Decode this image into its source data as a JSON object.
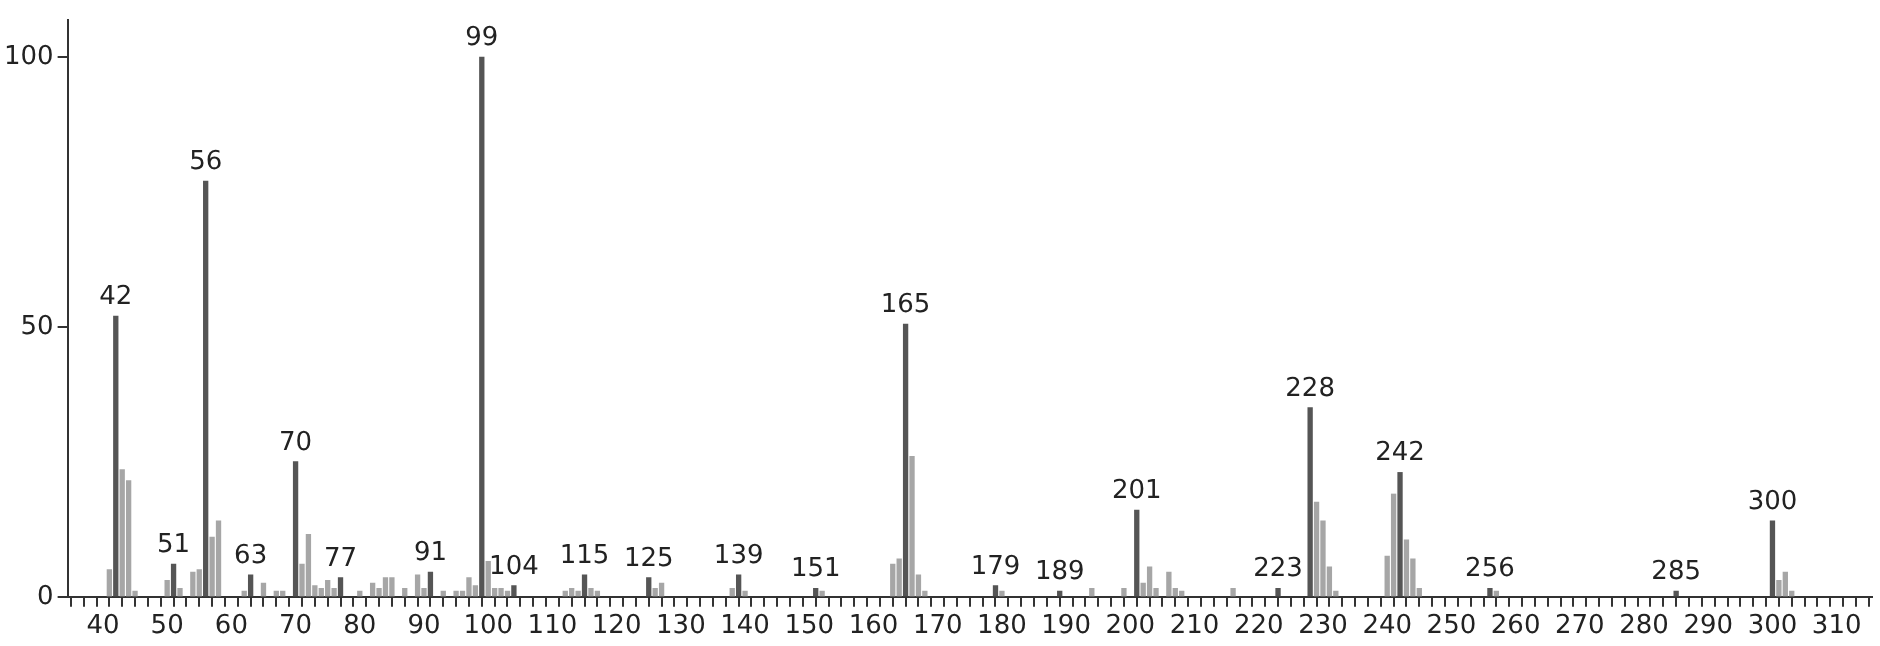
{
  "chart_data": {
    "type": "bar",
    "xlim": [
      34.5,
      315.5
    ],
    "ylim": [
      0,
      107
    ],
    "yticks": [
      0,
      50,
      100
    ],
    "xticks": [
      {
        "value": 36,
        "label": null
      },
      {
        "value": 38,
        "label": null
      },
      40,
      {
        "value": 42,
        "label": null
      },
      {
        "value": 44,
        "label": null
      },
      {
        "value": 46,
        "label": null
      },
      {
        "value": 48,
        "label": null
      },
      50,
      {
        "value": 52,
        "label": null
      },
      {
        "value": 54,
        "label": null
      },
      {
        "value": 56,
        "label": null
      },
      {
        "value": 58,
        "label": null
      },
      60,
      {
        "value": 62,
        "label": null
      },
      {
        "value": 64,
        "label": null
      },
      {
        "value": 66,
        "label": null
      },
      {
        "value": 68,
        "label": null
      },
      70,
      {
        "value": 72,
        "label": null
      },
      {
        "value": 74,
        "label": null
      },
      {
        "value": 76,
        "label": null
      },
      {
        "value": 78,
        "label": null
      },
      80,
      {
        "value": 82,
        "label": null
      },
      {
        "value": 84,
        "label": null
      },
      {
        "value": 86,
        "label": null
      },
      {
        "value": 88,
        "label": null
      },
      90,
      {
        "value": 92,
        "label": null
      },
      {
        "value": 94,
        "label": null
      },
      {
        "value": 96,
        "label": null
      },
      {
        "value": 98,
        "label": null
      },
      100,
      {
        "value": 102,
        "label": null
      },
      {
        "value": 104,
        "label": null
      },
      {
        "value": 106,
        "label": null
      },
      {
        "value": 108,
        "label": null
      },
      110,
      {
        "value": 112,
        "label": null
      },
      {
        "value": 114,
        "label": null
      },
      {
        "value": 116,
        "label": null
      },
      {
        "value": 118,
        "label": null
      },
      120,
      {
        "value": 122,
        "label": null
      },
      {
        "value": 124,
        "label": null
      },
      {
        "value": 126,
        "label": null
      },
      {
        "value": 128,
        "label": null
      },
      130,
      {
        "value": 132,
        "label": null
      },
      {
        "value": 134,
        "label": null
      },
      {
        "value": 136,
        "label": null
      },
      {
        "value": 138,
        "label": null
      },
      140,
      {
        "value": 142,
        "label": null
      },
      {
        "value": 144,
        "label": null
      },
      {
        "value": 146,
        "label": null
      },
      {
        "value": 148,
        "label": null
      },
      150,
      {
        "value": 152,
        "label": null
      },
      {
        "value": 154,
        "label": null
      },
      {
        "value": 156,
        "label": null
      },
      {
        "value": 158,
        "label": null
      },
      160,
      {
        "value": 162,
        "label": null
      },
      {
        "value": 164,
        "label": null
      },
      {
        "value": 166,
        "label": null
      },
      {
        "value": 168,
        "label": null
      },
      170,
      {
        "value": 172,
        "label": null
      },
      {
        "value": 174,
        "label": null
      },
      {
        "value": 176,
        "label": null
      },
      {
        "value": 178,
        "label": null
      },
      180,
      {
        "value": 182,
        "label": null
      },
      {
        "value": 184,
        "label": null
      },
      {
        "value": 186,
        "label": null
      },
      {
        "value": 188,
        "label": null
      },
      190,
      {
        "value": 192,
        "label": null
      },
      {
        "value": 194,
        "label": null
      },
      {
        "value": 196,
        "label": null
      },
      {
        "value": 198,
        "label": null
      },
      200,
      {
        "value": 202,
        "label": null
      },
      {
        "value": 204,
        "label": null
      },
      {
        "value": 206,
        "label": null
      },
      {
        "value": 208,
        "label": null
      },
      210,
      {
        "value": 212,
        "label": null
      },
      {
        "value": 214,
        "label": null
      },
      {
        "value": 216,
        "label": null
      },
      {
        "value": 218,
        "label": null
      },
      220,
      {
        "value": 222,
        "label": null
      },
      {
        "value": 224,
        "label": null
      },
      {
        "value": 226,
        "label": null
      },
      {
        "value": 228,
        "label": null
      },
      230,
      {
        "value": 232,
        "label": null
      },
      {
        "value": 234,
        "label": null
      },
      {
        "value": 236,
        "label": null
      },
      {
        "value": 238,
        "label": null
      },
      240,
      {
        "value": 242,
        "label": null
      },
      {
        "value": 244,
        "label": null
      },
      {
        "value": 246,
        "label": null
      },
      {
        "value": 248,
        "label": null
      },
      250,
      {
        "value": 252,
        "label": null
      },
      {
        "value": 254,
        "label": null
      },
      {
        "value": 256,
        "label": null
      },
      {
        "value": 258,
        "label": null
      },
      260,
      {
        "value": 262,
        "label": null
      },
      {
        "value": 264,
        "label": null
      },
      {
        "value": 266,
        "label": null
      },
      {
        "value": 268,
        "label": null
      },
      270,
      {
        "value": 272,
        "label": null
      },
      {
        "value": 274,
        "label": null
      },
      {
        "value": 276,
        "label": null
      },
      {
        "value": 278,
        "label": null
      },
      280,
      {
        "value": 282,
        "label": null
      },
      {
        "value": 284,
        "label": null
      },
      {
        "value": 286,
        "label": null
      },
      {
        "value": 288,
        "label": null
      },
      290,
      {
        "value": 292,
        "label": null
      },
      {
        "value": 294,
        "label": null
      },
      {
        "value": 296,
        "label": null
      },
      {
        "value": 298,
        "label": null
      },
      300,
      {
        "value": 302,
        "label": null
      },
      {
        "value": 304,
        "label": null
      },
      {
        "value": 306,
        "label": null
      },
      {
        "value": 308,
        "label": null
      },
      310,
      {
        "value": 312,
        "label": null
      },
      {
        "value": 314,
        "label": null
      }
    ],
    "grid": false,
    "legend": false,
    "series": [
      {
        "x": [
          41,
          42,
          43,
          44,
          45,
          50,
          51,
          52,
          54,
          55,
          56,
          57,
          58,
          62,
          63,
          65,
          67,
          68,
          70,
          71,
          72,
          73,
          74,
          75,
          76,
          77,
          80,
          82,
          83,
          84,
          85,
          87,
          89,
          90,
          91,
          93,
          95,
          96,
          97,
          98,
          99,
          100,
          101,
          102,
          103,
          104,
          112,
          113,
          114,
          115,
          116,
          117,
          125,
          126,
          127,
          138,
          139,
          140,
          151,
          152,
          163,
          164,
          165,
          166,
          167,
          168,
          179,
          180,
          189,
          194,
          199,
          201,
          202,
          203,
          204,
          206,
          207,
          208,
          216,
          223,
          228,
          229,
          230,
          231,
          232,
          240,
          241,
          242,
          243,
          244,
          245,
          256,
          257,
          285,
          300,
          301,
          302,
          303
        ],
        "values": [
          5,
          52,
          23.5,
          21.5,
          1,
          3,
          6,
          1.5,
          4.5,
          5,
          77,
          11,
          14,
          1,
          4,
          2.5,
          1,
          1,
          25,
          6,
          11.5,
          2,
          1.5,
          3,
          1.5,
          3.5,
          1,
          2.5,
          1.5,
          3.5,
          3.5,
          1.5,
          4,
          1.5,
          4.5,
          1,
          1,
          1,
          3.5,
          2,
          100,
          6.5,
          1.5,
          1.5,
          1,
          2,
          1,
          1.5,
          1,
          4,
          1.5,
          1,
          3.5,
          1.5,
          2.5,
          1.5,
          4,
          1,
          1.5,
          1,
          6,
          7,
          50.5,
          26,
          4,
          1,
          2,
          1,
          1,
          1.5,
          1.5,
          16,
          2.5,
          5.5,
          1.5,
          4.5,
          1.5,
          1,
          1.5,
          1.5,
          35,
          17.5,
          14,
          5.5,
          1,
          7.5,
          19,
          23,
          10.5,
          7,
          1.5,
          1.5,
          1,
          1,
          14,
          3,
          4.5,
          1
        ],
        "colors": [
          "#a6a6a6",
          "#555555",
          "#a6a6a6",
          "#a6a6a6",
          "#a6a6a6",
          "#a6a6a6",
          "#555555",
          "#a6a6a6",
          "#a6a6a6",
          "#a6a6a6",
          "#555555",
          "#a6a6a6",
          "#a6a6a6",
          "#a6a6a6",
          "#555555",
          "#a6a6a6",
          "#a6a6a6",
          "#a6a6a6",
          "#555555",
          "#a6a6a6",
          "#a6a6a6",
          "#a6a6a6",
          "#a6a6a6",
          "#a6a6a6",
          "#a6a6a6",
          "#555555",
          "#a6a6a6",
          "#a6a6a6",
          "#a6a6a6",
          "#a6a6a6",
          "#a6a6a6",
          "#a6a6a6",
          "#a6a6a6",
          "#a6a6a6",
          "#555555",
          "#a6a6a6",
          "#a6a6a6",
          "#a6a6a6",
          "#a6a6a6",
          "#a6a6a6",
          "#555555",
          "#a6a6a6",
          "#a6a6a6",
          "#a6a6a6",
          "#a6a6a6",
          "#555555",
          "#a6a6a6",
          "#a6a6a6",
          "#a6a6a6",
          "#555555",
          "#a6a6a6",
          "#a6a6a6",
          "#555555",
          "#a6a6a6",
          "#a6a6a6",
          "#a6a6a6",
          "#555555",
          "#a6a6a6",
          "#555555",
          "#a6a6a6",
          "#a6a6a6",
          "#a6a6a6",
          "#555555",
          "#a6a6a6",
          "#a6a6a6",
          "#a6a6a6",
          "#555555",
          "#a6a6a6",
          "#555555",
          "#a6a6a6",
          "#a6a6a6",
          "#555555",
          "#a6a6a6",
          "#a6a6a6",
          "#a6a6a6",
          "#a6a6a6",
          "#a6a6a6",
          "#a6a6a6",
          "#a6a6a6",
          "#555555",
          "#555555",
          "#a6a6a6",
          "#a6a6a6",
          "#a6a6a6",
          "#a6a6a6",
          "#a6a6a6",
          "#a6a6a6",
          "#555555",
          "#a6a6a6",
          "#a6a6a6",
          "#a6a6a6",
          "#555555",
          "#a6a6a6",
          "#555555",
          "#555555",
          "#a6a6a6",
          "#a6a6a6",
          "#a6a6a6"
        ]
      }
    ],
    "annotations": [
      {
        "text": "42",
        "x": 42,
        "y": 52
      },
      {
        "text": "51",
        "x": 51,
        "y": 6
      },
      {
        "text": "56",
        "x": 56,
        "y": 77
      },
      {
        "text": "63",
        "x": 63,
        "y": 4
      },
      {
        "text": "70",
        "x": 70,
        "y": 25
      },
      {
        "text": "77",
        "x": 77,
        "y": 3.5
      },
      {
        "text": "91",
        "x": 91,
        "y": 4.5
      },
      {
        "text": "99",
        "x": 99,
        "y": 100
      },
      {
        "text": "104",
        "x": 104,
        "y": 2
      },
      {
        "text": "115",
        "x": 115,
        "y": 4
      },
      {
        "text": "125",
        "x": 125,
        "y": 3.5
      },
      {
        "text": "139",
        "x": 139,
        "y": 4
      },
      {
        "text": "151",
        "x": 151,
        "y": 1.5
      },
      {
        "text": "165",
        "x": 165,
        "y": 50.5
      },
      {
        "text": "179",
        "x": 179,
        "y": 2
      },
      {
        "text": "189",
        "x": 189,
        "y": 1
      },
      {
        "text": "201",
        "x": 201,
        "y": 16
      },
      {
        "text": "223",
        "x": 223,
        "y": 1.5
      },
      {
        "text": "228",
        "x": 228,
        "y": 35
      },
      {
        "text": "242",
        "x": 242,
        "y": 23
      },
      {
        "text": "256",
        "x": 256,
        "y": 1.5
      },
      {
        "text": "285",
        "x": 285,
        "y": 1
      },
      {
        "text": "300",
        "x": 300,
        "y": 14
      }
    ]
  }
}
